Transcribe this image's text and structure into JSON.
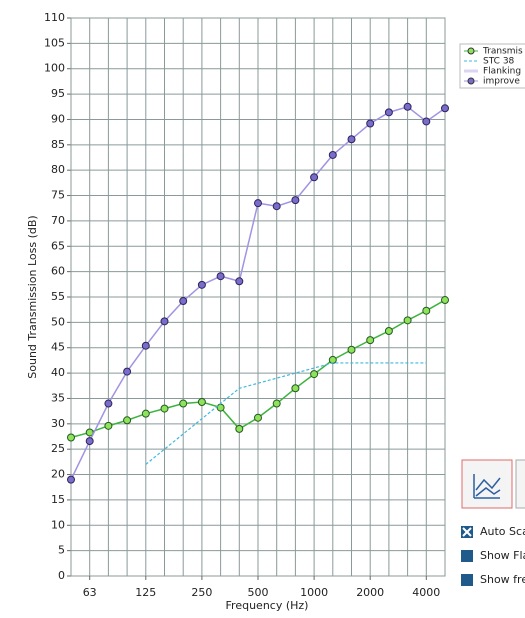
{
  "chart_data": {
    "type": "line",
    "x_label": "Frequency (Hz)",
    "y_label": "Sound Transmission Loss (dB)",
    "categories": [
      null,
      "63",
      null,
      null,
      "125",
      null,
      null,
      "250",
      null,
      null,
      "500",
      null,
      null,
      "1000",
      null,
      null,
      "2000",
      null,
      null,
      "4000",
      null
    ],
    "ylim": [
      0,
      110
    ],
    "yticks": [
      0,
      5,
      10,
      15,
      20,
      25,
      30,
      35,
      40,
      45,
      50,
      55,
      60,
      65,
      70,
      75,
      80,
      85,
      90,
      95,
      100,
      105,
      110
    ],
    "grid": true,
    "legend": "right",
    "series": [
      {
        "name": "Transmis",
        "color": "#3cb33c",
        "marker": true,
        "dashed": false,
        "values": [
          27.3,
          28.3,
          29.6,
          30.7,
          32,
          33,
          34,
          34.3,
          33.2,
          29,
          31.2,
          34,
          37,
          39.8,
          42.6,
          44.6,
          46.5,
          48.3,
          50.4,
          52.3,
          54.4
        ]
      },
      {
        "name": "STC 38",
        "color": "#3fb8e0",
        "marker": false,
        "dashed": true,
        "values": [
          null,
          null,
          null,
          null,
          22,
          25,
          28,
          31,
          34,
          37,
          38,
          39,
          40,
          41,
          42,
          42,
          42,
          42,
          42,
          42,
          null
        ]
      },
      {
        "name": "Flanking",
        "color": "#ddd3f3",
        "marker": false,
        "dashed": false,
        "values": [
          null,
          null,
          null,
          null,
          null,
          null,
          null,
          null,
          null,
          null,
          null,
          null,
          null,
          null,
          null,
          null,
          null,
          null,
          null,
          null,
          null
        ]
      },
      {
        "name": "improve",
        "color": "#a094e3",
        "marker": true,
        "dashed": false,
        "values": [
          19,
          26.6,
          34,
          40.3,
          45.4,
          50.2,
          54.2,
          57.4,
          59.1,
          58.1,
          73.5,
          72.9,
          74.1,
          78.6,
          83,
          86.1,
          89.2,
          91.4,
          92.5,
          89.6,
          92.2
        ]
      }
    ]
  },
  "controls": {
    "checkboxes": [
      {
        "label": "Auto Sca",
        "checked": true
      },
      {
        "label": "Show Fla",
        "checked": false
      },
      {
        "label": "Show fre",
        "checked": false
      }
    ]
  }
}
